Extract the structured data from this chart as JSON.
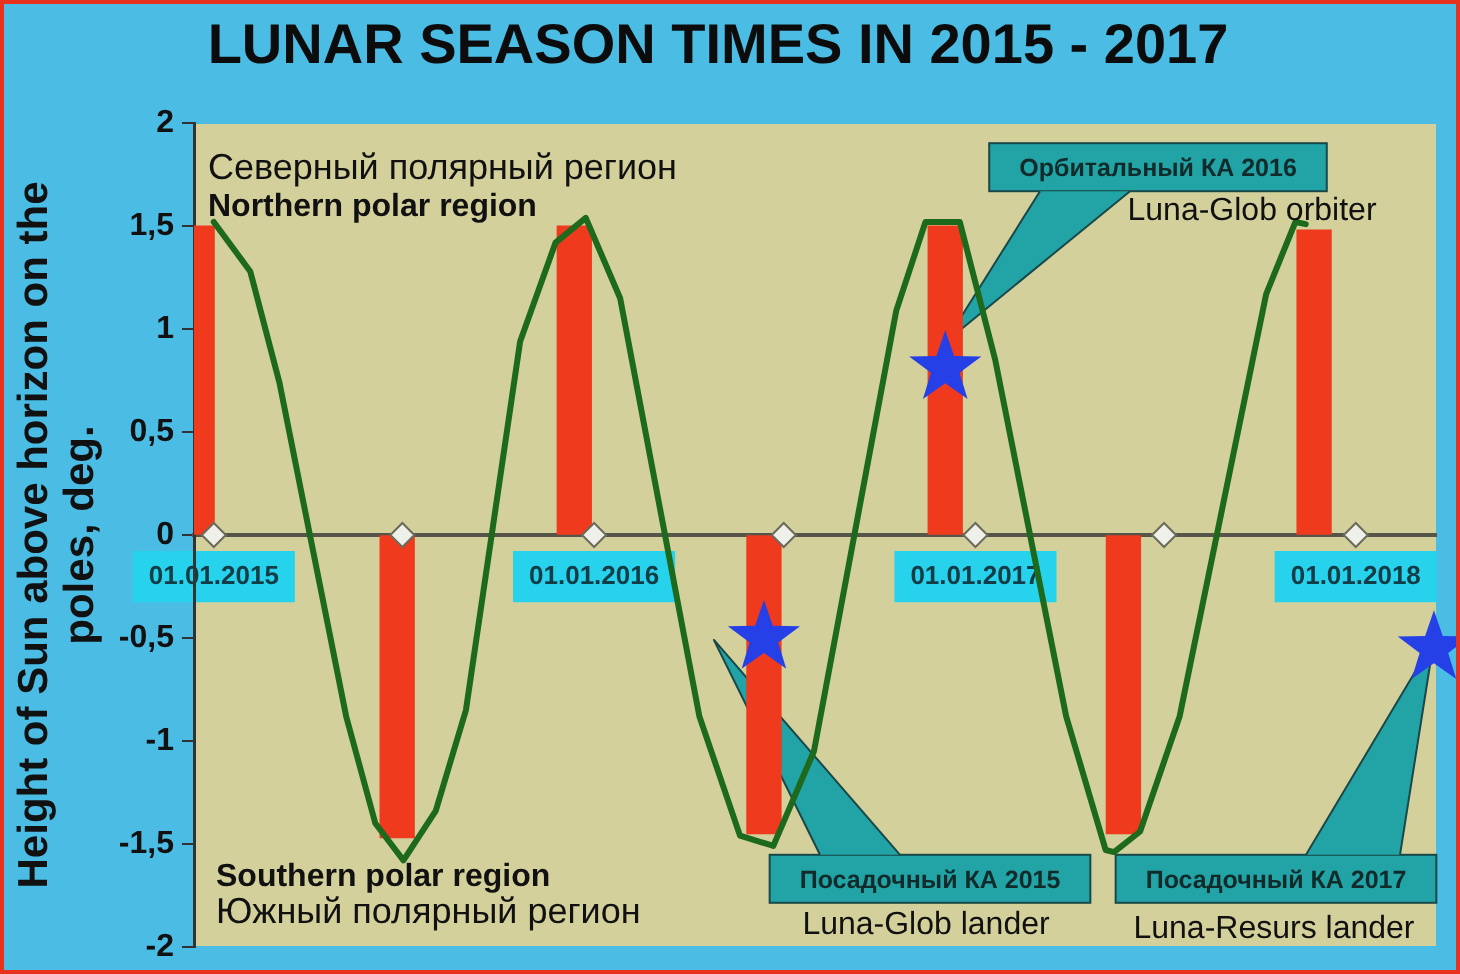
{
  "chart_data": {
    "type": "bar",
    "title": "LUNAR SEASON TIMES IN 2015 - 2017",
    "ylabel": "Height of Sun above horizon on the poles, deg.",
    "annotations": [
      "Северный полярный регион",
      "Northern polar region",
      "Орбитальный КА 2016",
      "Luna-Glob orbiter",
      "Посадочный КА 2015",
      "Luna-Glob lander",
      "Посадочный КА 2017",
      "Luna-Resurs lander",
      "Southern polar region",
      "Южный полярный регион"
    ],
    "series": [
      {
        "color": "#ef3a1d",
        "x": [
          "2014-12-16",
          "2015-06-26",
          "2015-12-13",
          "2016-06-12",
          "2016-12-03",
          "2017-05-23",
          "2017-11-22"
        ],
        "values": [
          1.5,
          -1.47,
          1.5,
          -1.45,
          1.5,
          -1.45,
          1.48
        ]
      },
      {
        "type": "line",
        "color": "#1d6a1d",
        "marker": "none",
        "x": [
          "2015-01-01",
          "2015-02-05",
          "2015-03-05",
          "2015-05-08",
          "2015-06-05",
          "2015-07-02",
          "2015-08-02",
          "2015-08-31",
          "2015-10-22",
          "2015-11-25",
          "2015-12-24",
          "2016-01-26",
          "2016-04-11",
          "2016-05-20",
          "2016-06-21",
          "2016-07-30",
          "2016-10-17",
          "2016-11-14",
          "2016-12-17",
          "2017-01-20",
          "2017-03-29",
          "2017-05-06",
          "2017-05-14",
          "2017-06-08",
          "2017-07-16",
          "2017-10-07",
          "2017-11-04",
          "2017-11-14"
        ],
        "values": [
          1.52,
          1.28,
          0.74,
          -0.88,
          -1.4,
          -1.58,
          -1.34,
          -0.85,
          0.94,
          1.42,
          1.54,
          1.15,
          -0.88,
          -1.46,
          -1.51,
          -1.05,
          1.09,
          1.52,
          1.52,
          0.85,
          -0.88,
          -1.53,
          -1.54,
          -1.44,
          -0.88,
          1.17,
          1.52,
          1.51
        ]
      },
      {
        "type": "scatter",
        "color": "#f0f0ea",
        "marker": "diamond",
        "x": [
          "2015-01-01",
          "2015-07-01",
          "2016-01-01",
          "2016-07-01",
          "2017-01-01",
          "2017-07-01",
          "2018-01-01"
        ],
        "values": [
          0,
          0,
          0,
          0,
          0,
          0,
          0
        ]
      },
      {
        "type": "scatter",
        "color": "#2440e6",
        "marker": "star",
        "x": [
          "2016-12-03",
          "2016-06-12",
          "2018-03-17"
        ],
        "values": [
          0.81,
          -0.5,
          -0.55
        ]
      }
    ],
    "xlim": [
      "2014-12-13",
      "2018-03-19"
    ],
    "ylim": [
      -2,
      2
    ],
    "xticks": [
      {
        "value": "2015-01-01",
        "label": "01.01.2015"
      },
      {
        "value": "2016-01-01",
        "label": "01.01.2016"
      },
      {
        "value": "2017-01-01",
        "label": "01.01.2017"
      },
      {
        "value": "2018-01-01",
        "label": "01.01.2018"
      }
    ],
    "yticks": [
      -2,
      {
        "value": -1.5,
        "label": "-1,5"
      },
      -1,
      {
        "value": -0.5,
        "label": "-0,5"
      },
      0,
      {
        "value": 0.5,
        "label": "0,5"
      },
      1,
      {
        "value": 1.5,
        "label": "1,5"
      },
      2
    ]
  }
}
